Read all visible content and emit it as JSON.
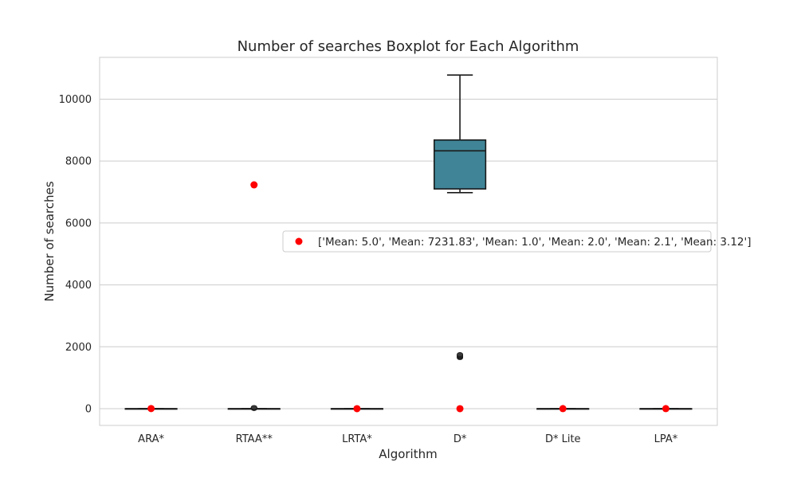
{
  "chart_data": {
    "type": "box",
    "title": "Number of searches Boxplot for Each Algorithm",
    "xlabel": "Algorithm",
    "ylabel": "Number of searches",
    "ylim": [
      -540,
      11350
    ],
    "yticks": [
      0,
      2000,
      4000,
      6000,
      8000,
      10000
    ],
    "grid": "horizontal",
    "categories": [
      "ARA*",
      "RTAA**",
      "LRTA*",
      "D*",
      "D* Lite",
      "LPA*"
    ],
    "boxes": [
      {
        "category": "ARA*",
        "q1": 0,
        "median": 0,
        "q3": 0,
        "whisker_low": 0,
        "whisker_high": 0,
        "outliers": []
      },
      {
        "category": "RTAA**",
        "q1": 0,
        "median": 0,
        "q3": 0,
        "whisker_low": 0,
        "whisker_high": 0,
        "outliers": [
          5,
          10,
          15,
          20,
          25,
          30,
          40
        ]
      },
      {
        "category": "LRTA*",
        "q1": 0,
        "median": 0,
        "q3": 0,
        "whisker_low": 0,
        "whisker_high": 0,
        "outliers": [
          5,
          10,
          15,
          20,
          25,
          30
        ]
      },
      {
        "category": "D*",
        "q1": 7100,
        "median": 8330,
        "q3": 8680,
        "whisker_low": 6980,
        "whisker_high": 10780,
        "outliers": [
          1650,
          1680,
          1700,
          1720,
          1750
        ]
      },
      {
        "category": "D* Lite",
        "q1": 0,
        "median": 0,
        "q3": 0,
        "whisker_low": 0,
        "whisker_high": 0,
        "outliers": []
      },
      {
        "category": "LPA*",
        "q1": 0,
        "median": 0,
        "q3": 0,
        "whisker_low": 0,
        "whisker_high": 0,
        "outliers": []
      }
    ],
    "means": [
      5.0,
      7231.83,
      1.0,
      2.0,
      2.1,
      3.12
    ],
    "legend": {
      "label": "['Mean: 5.0', 'Mean: 7231.83', 'Mean: 1.0', 'Mean: 2.0', 'Mean: 2.1', 'Mean: 3.12']",
      "placement": "center-right"
    },
    "colors": {
      "box_fill": "#3f8597",
      "box_edge": "#1a1a1a",
      "mean_marker": "#ff0000",
      "grid": "#cccccc",
      "axes_edge": "#cccccc"
    }
  }
}
